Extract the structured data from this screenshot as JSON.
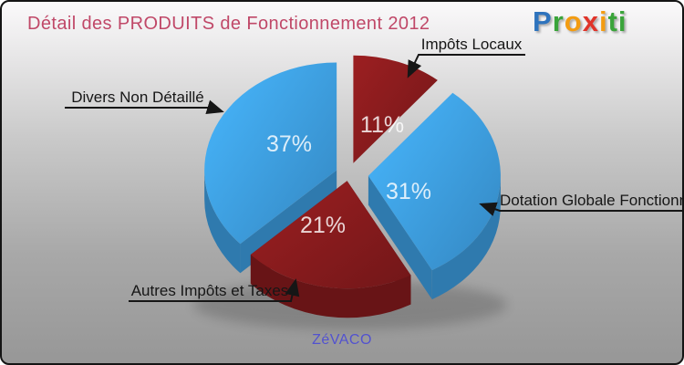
{
  "header": {
    "title": "Détail des PRODUITS de Fonctionnement 2012",
    "title_color": "#c04868",
    "logo": {
      "text": "Proxiti",
      "letters": [
        {
          "ch": "P",
          "color": "#2e73bd"
        },
        {
          "ch": "r",
          "color": "#3aa43a"
        },
        {
          "ch": "o",
          "color": "#f39c12"
        },
        {
          "ch": "x",
          "color": "#e0342a"
        },
        {
          "ch": "i",
          "color": "#f39c12"
        },
        {
          "ch": "t",
          "color": "#3aa43a"
        },
        {
          "ch": "i",
          "color": "#3aa43a"
        }
      ]
    }
  },
  "footer": {
    "watermark": "ZéVACO",
    "watermark_color": "#5252cf"
  },
  "chart_data": {
    "type": "pie",
    "style": "3d-exploded",
    "title": "Détail des PRODUITS de Fonctionnement 2012",
    "unit": "%",
    "start_angle_deg": 0,
    "direction": "clockwise",
    "legend_position": "callouts",
    "slices": [
      {
        "label": "Impôts Locaux",
        "value": 11,
        "pct_label": "11%",
        "color": "#8e1c1e"
      },
      {
        "label": "Dotation Globale Fonctionnement",
        "value": 31,
        "pct_label": "31%",
        "color": "#41a7ef"
      },
      {
        "label": "Autres Impôts et Taxes",
        "value": 21,
        "pct_label": "21%",
        "color": "#8e1c1e"
      },
      {
        "label": "Divers Non Détaillé",
        "value": 37,
        "pct_label": "37%",
        "color": "#41a7ef"
      }
    ]
  },
  "colors": {
    "background_top": "#faf9fa",
    "background_bottom": "#979797",
    "callout": "#161616",
    "blue_top": "#41a7ef",
    "blue_side": "#2c83cc",
    "red_top": "#8e1c1e",
    "red_side": "#671012"
  }
}
